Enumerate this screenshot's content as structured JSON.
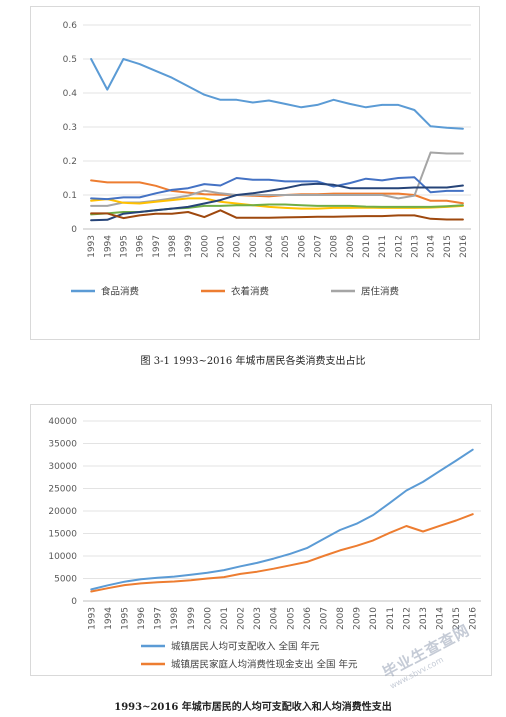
{
  "chart_data": [
    {
      "type": "line",
      "title": "",
      "caption": "图 3-1    1993~2016 年城市居民各类消费支出占比",
      "categories": [
        "1993",
        "1994",
        "1995",
        "1996",
        "1997",
        "1998",
        "1999",
        "2000",
        "2001",
        "2002",
        "2003",
        "2004",
        "2005",
        "2006",
        "2007",
        "2008",
        "2009",
        "2010",
        "2011",
        "2012",
        "2013",
        "2014",
        "2015",
        "2016"
      ],
      "y_ticks": [
        "0",
        "0.1",
        "0.2",
        "0.3",
        "0.4",
        "0.5",
        "0.6"
      ],
      "ylim": [
        0,
        0.6
      ],
      "legend_position": "bottom",
      "series": [
        {
          "name": "食品消费",
          "color": "#5b9bd5",
          "legend": true,
          "values": [
            0.5,
            0.41,
            0.5,
            0.485,
            0.465,
            0.445,
            0.42,
            0.395,
            0.38,
            0.38,
            0.372,
            0.378,
            0.368,
            0.358,
            0.365,
            0.38,
            0.368,
            0.358,
            0.365,
            0.365,
            0.35,
            0.302,
            0.298,
            0.295
          ]
        },
        {
          "name": "衣着消费",
          "color": "#ed7d31",
          "legend": true,
          "values": [
            0.143,
            0.137,
            0.137,
            0.137,
            0.127,
            0.112,
            0.107,
            0.102,
            0.101,
            0.1,
            0.098,
            0.096,
            0.1,
            0.102,
            0.102,
            0.104,
            0.104,
            0.104,
            0.104,
            0.104,
            0.1,
            0.083,
            0.083,
            0.076
          ]
        },
        {
          "name": "居住消费",
          "color": "#a5a5a5",
          "legend": true,
          "values": [
            0.068,
            0.068,
            0.078,
            0.078,
            0.083,
            0.09,
            0.098,
            0.113,
            0.105,
            0.1,
            0.1,
            0.1,
            0.1,
            0.1,
            0.1,
            0.1,
            0.1,
            0.1,
            0.1,
            0.09,
            0.098,
            0.225,
            0.222,
            0.222
          ]
        },
        {
          "name": "",
          "color": "#ffc000",
          "legend": false,
          "values": [
            0.083,
            0.088,
            0.077,
            0.075,
            0.08,
            0.085,
            0.09,
            0.09,
            0.08,
            0.075,
            0.07,
            0.065,
            0.062,
            0.06,
            0.06,
            0.062,
            0.062,
            0.063,
            0.062,
            0.062,
            0.062,
            0.063,
            0.065,
            0.068
          ]
        },
        {
          "name": "",
          "color": "#4472c4",
          "legend": false,
          "values": [
            0.09,
            0.088,
            0.093,
            0.093,
            0.105,
            0.115,
            0.12,
            0.132,
            0.128,
            0.15,
            0.145,
            0.145,
            0.14,
            0.14,
            0.14,
            0.125,
            0.135,
            0.148,
            0.143,
            0.15,
            0.152,
            0.108,
            0.112,
            0.112
          ]
        },
        {
          "name": "",
          "color": "#70ad47",
          "legend": false,
          "values": [
            0.043,
            0.046,
            0.05,
            0.05,
            0.055,
            0.06,
            0.062,
            0.068,
            0.068,
            0.07,
            0.07,
            0.072,
            0.072,
            0.07,
            0.068,
            0.068,
            0.068,
            0.066,
            0.065,
            0.065,
            0.065,
            0.065,
            0.067,
            0.07
          ]
        },
        {
          "name": "",
          "color": "#264478",
          "legend": false,
          "values": [
            0.026,
            0.027,
            0.045,
            0.05,
            0.055,
            0.06,
            0.065,
            0.075,
            0.085,
            0.1,
            0.105,
            0.112,
            0.12,
            0.13,
            0.133,
            0.13,
            0.12,
            0.12,
            0.12,
            0.12,
            0.122,
            0.122,
            0.122,
            0.128
          ]
        },
        {
          "name": "",
          "color": "#9e480e",
          "legend": false,
          "values": [
            0.046,
            0.046,
            0.032,
            0.04,
            0.045,
            0.045,
            0.05,
            0.035,
            0.055,
            0.033,
            0.033,
            0.033,
            0.034,
            0.035,
            0.036,
            0.036,
            0.037,
            0.038,
            0.038,
            0.04,
            0.04,
            0.03,
            0.028,
            0.028
          ]
        }
      ]
    },
    {
      "type": "line",
      "title": "",
      "caption": "1993~2016 年城市居民的人均可支配收入和人均消费性支出",
      "categories": [
        "1993",
        "1994",
        "1995",
        "1996",
        "1997",
        "1998",
        "1999",
        "2000",
        "2001",
        "2002",
        "2003",
        "2004",
        "2005",
        "2006",
        "2007",
        "2008",
        "2009",
        "2010",
        "2011",
        "2012",
        "2013",
        "2014",
        "2015",
        "2016"
      ],
      "y_ticks": [
        "0",
        "5000",
        "10000",
        "15000",
        "20000",
        "25000",
        "30000",
        "35000",
        "40000"
      ],
      "ylim": [
        0,
        40000
      ],
      "legend_position": "bottom",
      "series": [
        {
          "name": "城镇居民人均可支配收入 全国 年元",
          "color": "#5b9bd5",
          "legend": true,
          "values": [
            2577,
            3496,
            4283,
            4839,
            5160,
            5425,
            5854,
            6280,
            6860,
            7703,
            8472,
            9422,
            10493,
            11759,
            13786,
            15781,
            17175,
            19109,
            21810,
            24565,
            26467,
            28844,
            31195,
            33616
          ]
        },
        {
          "name": "城镇居民家庭人均消费性现金支出 全国 年元",
          "color": "#ed7d31",
          "legend": true,
          "values": [
            2111,
            2851,
            3538,
            3919,
            4186,
            4332,
            4616,
            4998,
            5309,
            6030,
            6511,
            7182,
            7943,
            8697,
            9997,
            11243,
            12265,
            13471,
            15161,
            16674,
            15453,
            16690,
            17887,
            19284
          ]
        }
      ]
    }
  ],
  "watermark": {
    "line1": "毕业生查查网",
    "line2": "www.sbvv.com"
  }
}
